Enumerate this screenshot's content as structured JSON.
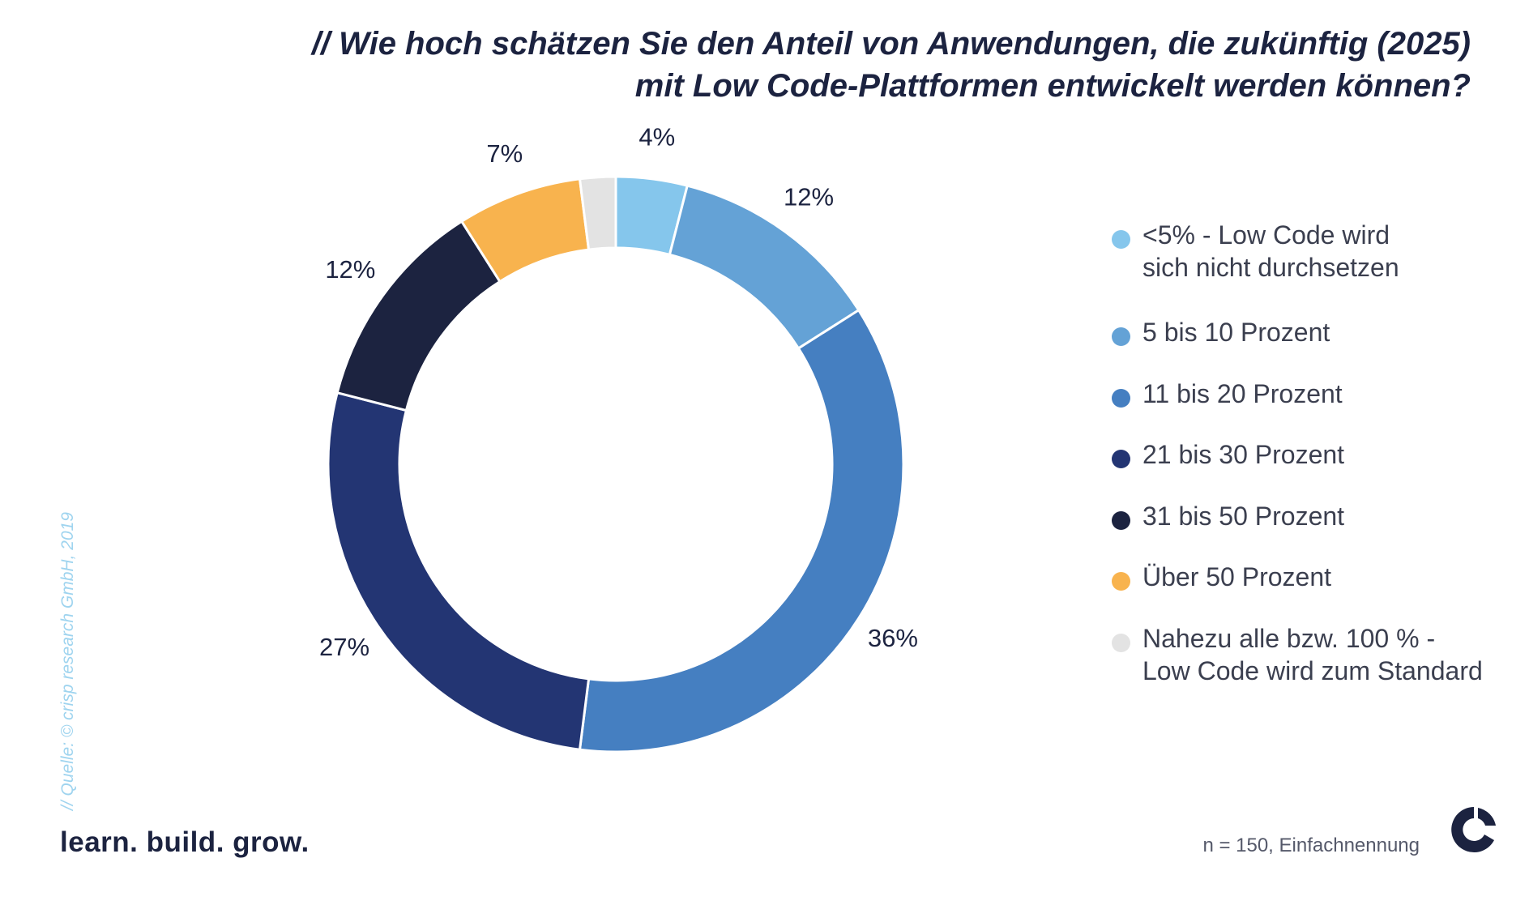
{
  "title": {
    "line1": "// Wie hoch schätzen Sie den Anteil von Anwendungen, die zukünftig (2025)",
    "line2": "mit Low Code-Plattformen entwickelt werden können?"
  },
  "chart_data": {
    "type": "pie",
    "variant": "donut",
    "title": "// Wie hoch schätzen Sie den Anteil von Anwendungen, die zukünftig (2025) mit Low Code-Plattformen entwickelt werden können?",
    "categories": [
      "<5% - Low Code wird sich nicht durchsetzen",
      "5 bis 10 Prozent",
      "11 bis 20 Prozent",
      "21 bis 30 Prozent",
      "31 bis 50 Prozent",
      "Über 50 Prozent",
      "Nahezu alle bzw. 100 % - Low Code wird zum Standard"
    ],
    "values": [
      4,
      12,
      36,
      27,
      12,
      7,
      2
    ],
    "data_labels": [
      "4%",
      "12%",
      "36%",
      "27%",
      "12%",
      "7%",
      ""
    ],
    "colors": [
      "#85c6ec",
      "#64a2d6",
      "#457fc1",
      "#233573",
      "#1c2340",
      "#f8b34e",
      "#e3e3e3"
    ],
    "legend_position": "right",
    "start": "top, clockwise"
  },
  "legend": [
    {
      "label": "<5% - Low Code wird\nsich nicht durchsetzen",
      "color": "#85c6ec"
    },
    {
      "label": "5 bis 10 Prozent",
      "color": "#64a2d6"
    },
    {
      "label": "11 bis 20 Prozent",
      "color": "#457fc1"
    },
    {
      "label": "21 bis 30 Prozent",
      "color": "#233573"
    },
    {
      "label": "31 bis 50 Prozent",
      "color": "#1c2340"
    },
    {
      "label": "Über 50 Prozent",
      "color": "#f8b34e"
    },
    {
      "label": "Nahezu alle bzw. 100 % -\nLow Code wird zum Standard",
      "color": "#e3e3e3"
    }
  ],
  "footer": {
    "source": "// Quelle: © crisp research GmbH, 2019",
    "tagline": "learn. build. grow.",
    "note": "n = 150, Einfachnennung"
  },
  "logo": {
    "icon": "crisp-research-logo-icon",
    "color": "#1c2340"
  }
}
